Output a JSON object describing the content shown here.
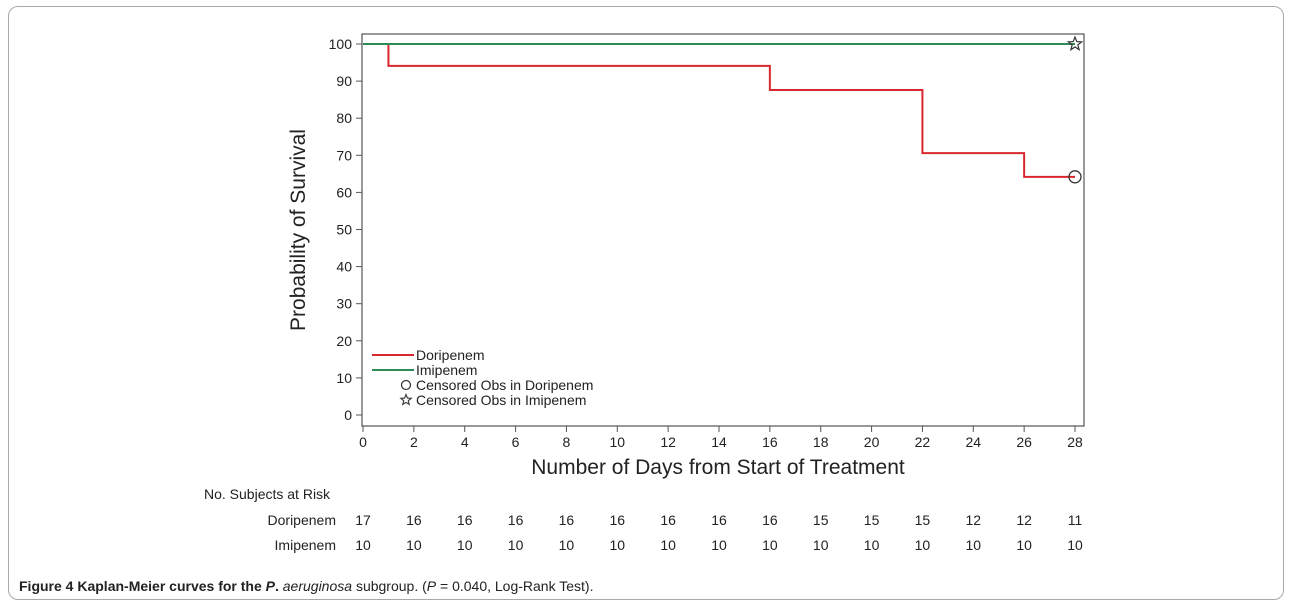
{
  "chart_data": {
    "type": "line",
    "title": "",
    "xlabel": "Number of Days from Start of Treatment",
    "ylabel": "Probability of Survival",
    "xlim": [
      0,
      28
    ],
    "ylim": [
      0,
      100
    ],
    "x_ticks": [
      0,
      2,
      4,
      6,
      8,
      10,
      12,
      14,
      16,
      18,
      20,
      22,
      24,
      26,
      28
    ],
    "y_ticks": [
      0,
      10,
      20,
      30,
      40,
      50,
      60,
      70,
      80,
      90,
      100
    ],
    "x_tick_labels": [
      "0",
      "2",
      "4",
      "6",
      "8",
      "10",
      "12",
      "14",
      "16",
      "18",
      "20",
      "22",
      "24",
      "26",
      "28"
    ],
    "y_tick_labels": [
      "0",
      "10",
      "20",
      "30",
      "40",
      "50",
      "60",
      "70",
      "80",
      "90",
      "100"
    ],
    "grid": false,
    "legend_position": "bottom-left",
    "series": [
      {
        "name": "Doripenem",
        "color": "#d9272e",
        "step": true,
        "x": [
          0,
          1,
          16,
          22,
          26,
          28
        ],
        "y": [
          100,
          94.1,
          87.6,
          70.6,
          64.2,
          64.2
        ],
        "censored": [
          {
            "x": 28,
            "y": 64.2
          }
        ],
        "censor_marker": "circle"
      },
      {
        "name": "Imipenem",
        "color": "#2e8b57",
        "step": true,
        "x": [
          0,
          28
        ],
        "y": [
          100,
          100
        ],
        "censored": [
          {
            "x": 28,
            "y": 100
          }
        ],
        "censor_marker": "star"
      }
    ],
    "legend": [
      {
        "label": "Doripenem",
        "kind": "line",
        "color": "#d9272e"
      },
      {
        "label": "Imipenem",
        "kind": "line",
        "color": "#2e8b57"
      },
      {
        "label": "Censored Obs in Doripenem",
        "kind": "circle",
        "color": "#333333"
      },
      {
        "label": "Censored Obs in Imipenem",
        "kind": "star",
        "color": "#333333"
      }
    ],
    "risk_table": {
      "title": "No. Subjects at Risk",
      "rows": [
        {
          "label": "Doripenem",
          "values": [
            "17",
            "16",
            "16",
            "16",
            "16",
            "16",
            "16",
            "16",
            "16",
            "15",
            "15",
            "15",
            "12",
            "12",
            "11"
          ]
        },
        {
          "label": "Imipenem",
          "values": [
            "10",
            "10",
            "10",
            "10",
            "10",
            "10",
            "10",
            "10",
            "10",
            "10",
            "10",
            "10",
            "10",
            "10",
            "10"
          ]
        }
      ]
    }
  },
  "caption": {
    "fig_label": "Figure 4",
    "bold_pre": "Kaplan-Meier curves for the",
    "bold_italic": "P",
    "bold_post": ".",
    "organism": "aeruginosa",
    "subgroup": "subgroup.",
    "paren_open": "(",
    "p_symbol": "P",
    "p_value": "= 0.040, Log-Rank Test)."
  }
}
